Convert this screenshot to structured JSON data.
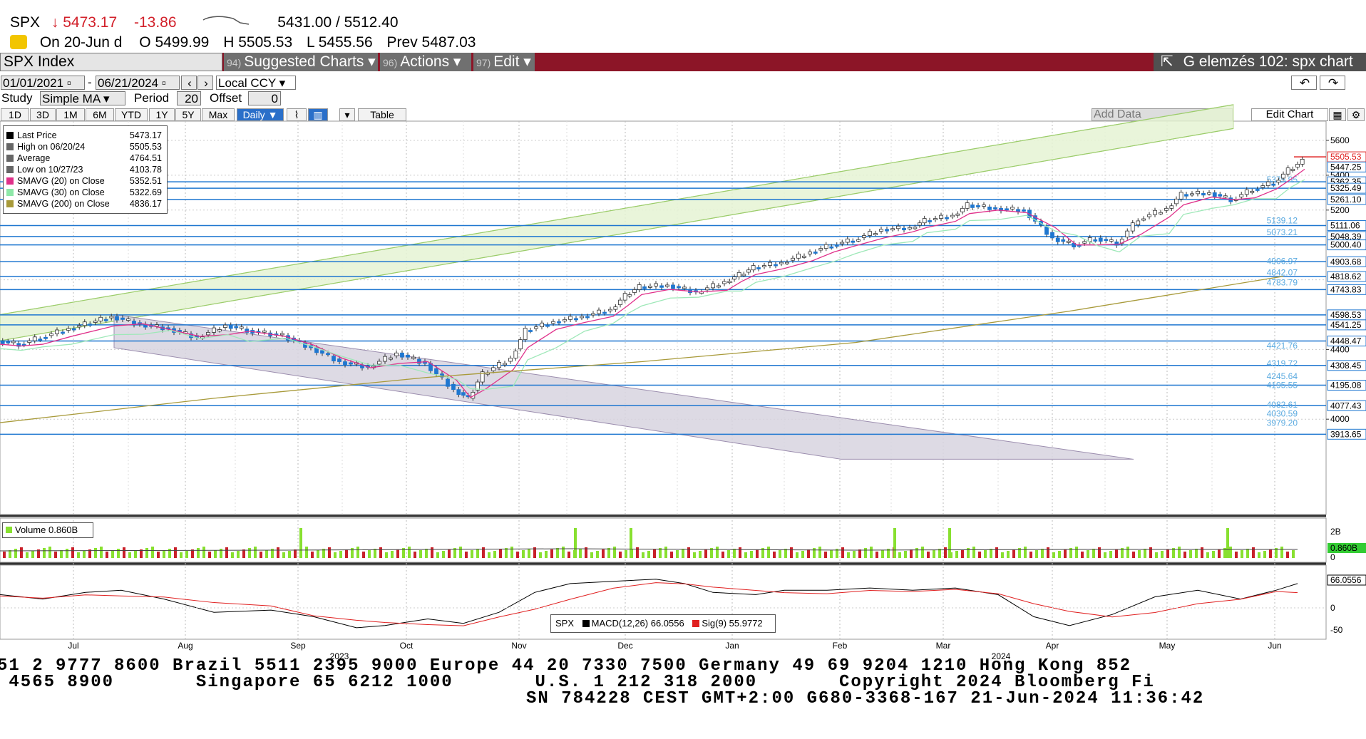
{
  "header": {
    "symbol": "SPX",
    "arrow": "↓",
    "last": "5473.17",
    "change": "-13.86",
    "range": "5431.00 / 5512.40",
    "date": "On 20-Jun d",
    "open_label": "O",
    "open": "5499.99",
    "high_label": "H",
    "high": "5505.53",
    "low_label": "L",
    "low": "5455.56",
    "prev_label": "Prev",
    "prev": "5487.03"
  },
  "menubar": {
    "index": "SPX Index",
    "buttons": [
      {
        "num": "94)",
        "label": "Suggested Charts ▾"
      },
      {
        "num": "96)",
        "label": "Actions ▾"
      },
      {
        "num": "97)",
        "label": "Edit ▾"
      }
    ],
    "title": "G elemzés 102: spx chart"
  },
  "toolbar": {
    "start": "01/01/2021",
    "end": "06/21/2024",
    "dash": "-",
    "currency": "Local CCY",
    "study_label": "Study",
    "study": "Simple MA",
    "period_label": "Period",
    "period": "20",
    "offset_label": "Offset",
    "offset": "0",
    "ranges": [
      "1D",
      "3D",
      "1M",
      "6M",
      "YTD",
      "1Y",
      "5Y",
      "Max"
    ],
    "freq": "Daily ▼",
    "table": "Table",
    "add_data": "Add Data",
    "edit_chart": "Edit Chart"
  },
  "legend": [
    {
      "label": "Last Price",
      "value": "5473.17",
      "color": "#000000"
    },
    {
      "label": "High on 06/20/24",
      "value": "5505.53",
      "color": "#666666"
    },
    {
      "label": "Average",
      "value": "4764.51",
      "color": "#666666"
    },
    {
      "label": "Low on 10/27/23",
      "value": "4103.78",
      "color": "#666666"
    },
    {
      "label": "SMAVG (20)  on Close",
      "value": "5352.51",
      "color": "#e0308a"
    },
    {
      "label": "SMAVG (30)  on Close",
      "value": "5322.69",
      "color": "#8ee8a8"
    },
    {
      "label": "SMAVG (200)  on Close",
      "value": "4836.17",
      "color": "#a89a3a"
    }
  ],
  "chart_data": {
    "type": "candlestick",
    "price_axis_ticks": [
      "5600",
      "5400",
      "5200",
      "4400",
      "4000"
    ],
    "right_tags": [
      "5505.53",
      "5447.25",
      "5362.35",
      "5325.49",
      "5261.10",
      "5111.06",
      "5048.39",
      "5000.40",
      "4903.68",
      "4818.62",
      "4743.83",
      "4598.53",
      "4541.25",
      "4448.47",
      "4308.45",
      "4195.08",
      "4077.43",
      "3913.65"
    ],
    "level_labels": [
      "5375.95",
      "5139.12",
      "5073.21",
      "4906.97",
      "4842.07",
      "4783.79",
      "4421.76",
      "4319.72",
      "4245.64",
      "4195.55",
      "4082.61",
      "4030.59",
      "3979.20"
    ],
    "months": [
      "Jul",
      "Aug",
      "Sep",
      "Oct",
      "Nov",
      "Dec",
      "Jan",
      "Feb",
      "Mar",
      "Apr",
      "May",
      "Jun"
    ],
    "years": [
      "2023",
      "2024"
    ],
    "volume": {
      "label": "Volume 0.860B",
      "ticks": [
        "2B",
        "0"
      ],
      "last_tag": "0.860B"
    },
    "macd": {
      "macd_label": "MACD(12,26)",
      "macd": "66.0556",
      "sig_label": "Sig(9)",
      "sig": "55.9772",
      "symbol": "SPX",
      "ticks": [
        "0",
        "-50"
      ],
      "last_tag": "66.0556"
    }
  },
  "footer": {
    "line1": "51 2 9777 8600 Brazil 5511 2395 9000 Europe 44 20 7330 7500 Germany 49 69 9204 1210 Hong Kong 852",
    "line2": " 4565 8900       Singapore 65 6212 1000       U.S. 1 212 318 2000       Copyright 2024 Bloomberg Fi",
    "line3": "SN 784228 CEST GMT+2:00 G680-3368-167 21-Jun-2024 11:36:42"
  }
}
